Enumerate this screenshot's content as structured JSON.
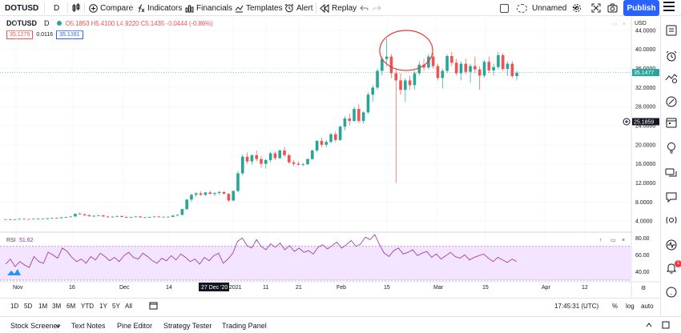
{
  "toolbar": {
    "symbol": "DOTUSD",
    "interval": "D",
    "compare": "Compare",
    "indicators": "Indicators",
    "financials": "Financials",
    "templates": "Templates",
    "alert": "Alert",
    "replay": "Replay",
    "layout_name": "Unnamed",
    "publish": "Publish"
  },
  "legend": {
    "symbol": "DOTUSD",
    "interval": "D",
    "ohlc": "O5.1853 H5.4100 L4.9220 C5.1435 -0.0444 (-0.86%)",
    "sell_price": "35.1275",
    "spread": "0.0116",
    "buy_price": "35.1391"
  },
  "price_axis": {
    "currency": "USD",
    "ticks": [
      "44.0000",
      "40.0000",
      "36.0000",
      "32.0000",
      "28.0000",
      "24.0000",
      "20.0000",
      "16.0000",
      "12.0000",
      "8.0000",
      "4.0000"
    ],
    "last_price": "35.1477",
    "crosshair_price": "25.1859"
  },
  "rsi": {
    "label": "RSI",
    "value": "51.62",
    "ticks": [
      "80.00",
      "60.00",
      "40.00"
    ]
  },
  "time_axis": {
    "labels": [
      "Nov",
      "16",
      "Dec",
      "14",
      "2021",
      "11",
      "21",
      "Feb",
      "15",
      "Mar",
      "15",
      "Apr",
      "12"
    ],
    "crosshair_date": "27 Dec '20"
  },
  "range_bar": {
    "ranges": [
      "1D",
      "5D",
      "1M",
      "3M",
      "6M",
      "YTD",
      "1Y",
      "5Y",
      "All"
    ],
    "clock": "17:45:31 (UTC)",
    "percent": "%",
    "log": "log",
    "auto": "auto"
  },
  "bottom_panel": {
    "tabs": [
      "Stock Screener",
      "Text Notes",
      "Pine Editor",
      "Strategy Tester",
      "Trading Panel"
    ]
  },
  "notifications": {
    "badge": "1"
  },
  "chart_data": {
    "type": "candlestick",
    "symbol": "DOTUSD",
    "interval": "D",
    "ylim": [
      2,
      46
    ],
    "grid": true,
    "colors": {
      "up": "#26a69a",
      "down": "#ef5350",
      "rsi": "#9c27b0",
      "rsi_band": "#f3e5ff",
      "annotation": "#e53935"
    },
    "candles": [
      [
        4.35,
        4.4,
        4.3,
        4.37
      ],
      [
        4.37,
        4.45,
        4.3,
        4.33
      ],
      [
        4.33,
        4.4,
        4.25,
        4.36
      ],
      [
        4.36,
        4.5,
        4.3,
        4.45
      ],
      [
        4.45,
        4.5,
        4.35,
        4.4
      ],
      [
        4.4,
        4.45,
        4.3,
        4.38
      ],
      [
        4.38,
        4.5,
        4.32,
        4.46
      ],
      [
        4.46,
        4.55,
        4.4,
        4.5
      ],
      [
        4.5,
        4.55,
        4.4,
        4.42
      ],
      [
        4.42,
        4.6,
        4.35,
        4.58
      ],
      [
        4.58,
        4.7,
        4.5,
        4.65
      ],
      [
        4.65,
        4.75,
        4.55,
        4.6
      ],
      [
        4.6,
        4.8,
        4.55,
        4.78
      ],
      [
        4.78,
        4.9,
        4.7,
        4.85
      ],
      [
        4.85,
        5.0,
        4.75,
        4.95
      ],
      [
        4.95,
        5.6,
        4.9,
        5.5
      ],
      [
        5.5,
        5.8,
        5.3,
        5.4
      ],
      [
        5.4,
        5.6,
        5.1,
        5.2
      ],
      [
        5.2,
        5.4,
        4.9,
        5.0
      ],
      [
        5.0,
        5.2,
        4.8,
        5.1
      ],
      [
        5.1,
        5.3,
        4.95,
        5.2
      ],
      [
        5.2,
        5.25,
        4.9,
        4.95
      ],
      [
        4.95,
        5.05,
        4.7,
        4.8
      ],
      [
        4.8,
        5.0,
        4.7,
        4.9
      ],
      [
        4.9,
        5.1,
        4.85,
        5.05
      ],
      [
        5.05,
        5.1,
        4.8,
        4.85
      ],
      [
        4.85,
        4.95,
        4.6,
        4.7
      ],
      [
        4.7,
        4.9,
        4.6,
        4.82
      ],
      [
        4.82,
        5.0,
        4.75,
        4.95
      ],
      [
        4.95,
        5.0,
        4.7,
        4.75
      ],
      [
        4.75,
        4.85,
        4.6,
        4.78
      ],
      [
        4.78,
        4.9,
        4.7,
        4.85
      ],
      [
        4.85,
        5.0,
        4.8,
        4.95
      ],
      [
        4.95,
        5.0,
        4.75,
        4.8
      ],
      [
        4.8,
        4.95,
        4.7,
        4.9
      ],
      [
        4.9,
        5.0,
        4.8,
        4.85
      ],
      [
        4.85,
        5.2,
        4.8,
        5.15
      ],
      [
        5.15,
        5.4,
        5.0,
        5.3
      ],
      [
        5.3,
        6.6,
        5.2,
        6.5
      ],
      [
        6.5,
        8.6,
        6.3,
        8.5
      ],
      [
        8.5,
        9.8,
        8.0,
        9.5
      ],
      [
        9.5,
        10.1,
        9.0,
        9.8
      ],
      [
        9.8,
        10.2,
        9.3,
        9.5
      ],
      [
        9.5,
        10.1,
        9.2,
        10.0
      ],
      [
        10.0,
        10.4,
        9.6,
        9.7
      ],
      [
        9.7,
        10.0,
        9.2,
        9.9
      ],
      [
        9.9,
        10.3,
        9.5,
        10.1
      ],
      [
        10.1,
        10.2,
        9.6,
        9.7
      ],
      [
        9.7,
        9.8,
        8.0,
        8.3
      ],
      [
        8.3,
        10.5,
        8.1,
        10.3
      ],
      [
        10.3,
        14.5,
        10.0,
        14.0
      ],
      [
        14.0,
        18.0,
        13.5,
        17.5
      ],
      [
        17.5,
        18.4,
        16.0,
        16.5
      ],
      [
        16.5,
        18.0,
        15.8,
        17.8
      ],
      [
        17.8,
        18.8,
        16.5,
        17.0
      ],
      [
        17.0,
        17.6,
        15.2,
        16.0
      ],
      [
        16.0,
        17.0,
        15.0,
        16.8
      ],
      [
        16.8,
        18.5,
        16.3,
        18.2
      ],
      [
        18.2,
        18.6,
        16.8,
        17.2
      ],
      [
        17.2,
        19.0,
        17.0,
        18.8
      ],
      [
        18.8,
        19.5,
        17.5,
        17.8
      ],
      [
        17.8,
        18.2,
        16.0,
        16.3
      ],
      [
        16.3,
        16.8,
        15.5,
        16.0
      ],
      [
        16.0,
        16.5,
        15.6,
        15.8
      ],
      [
        15.8,
        16.2,
        15.5,
        15.9
      ],
      [
        15.9,
        17.2,
        15.7,
        17.0
      ],
      [
        17.0,
        19.0,
        16.8,
        18.8
      ],
      [
        18.8,
        21.0,
        18.5,
        20.8
      ],
      [
        20.8,
        21.5,
        19.5,
        20.0
      ],
      [
        20.0,
        21.0,
        19.5,
        20.6
      ],
      [
        20.6,
        22.5,
        20.3,
        22.2
      ],
      [
        22.2,
        22.8,
        20.5,
        21.0
      ],
      [
        21.0,
        24.0,
        20.8,
        23.8
      ],
      [
        23.8,
        26.0,
        23.0,
        25.5
      ],
      [
        25.5,
        26.5,
        24.0,
        25.0
      ],
      [
        25.0,
        28.0,
        24.8,
        27.5
      ],
      [
        27.5,
        28.5,
        24.5,
        25.0
      ],
      [
        25.0,
        27.0,
        24.5,
        26.8
      ],
      [
        26.8,
        31.0,
        26.5,
        30.5
      ],
      [
        30.5,
        32.5,
        29.0,
        32.0
      ],
      [
        32.0,
        36.0,
        31.5,
        35.5
      ],
      [
        35.5,
        38.5,
        34.5,
        38.0
      ],
      [
        38.0,
        42.3,
        36.5,
        38.5
      ],
      [
        38.5,
        39.0,
        34.0,
        35.0
      ],
      [
        35.0,
        36.0,
        12.0,
        33.5
      ],
      [
        33.5,
        35.0,
        30.5,
        31.5
      ],
      [
        31.5,
        34.0,
        29.0,
        33.5
      ],
      [
        33.5,
        34.5,
        31.5,
        32.5
      ],
      [
        32.5,
        35.5,
        31.5,
        35.0
      ],
      [
        35.0,
        37.5,
        34.5,
        36.8
      ],
      [
        36.8,
        38.0,
        35.5,
        36.2
      ],
      [
        36.2,
        39.0,
        35.8,
        38.5
      ],
      [
        38.5,
        39.2,
        36.0,
        36.5
      ],
      [
        36.5,
        37.0,
        33.5,
        34.0
      ],
      [
        34.0,
        36.0,
        31.8,
        35.5
      ],
      [
        35.5,
        39.0,
        35.0,
        38.6
      ],
      [
        38.6,
        39.5,
        36.5,
        37.2
      ],
      [
        37.2,
        38.0,
        34.5,
        35.0
      ],
      [
        35.0,
        37.5,
        33.5,
        37.0
      ],
      [
        37.0,
        38.0,
        34.8,
        35.3
      ],
      [
        35.3,
        37.0,
        33.0,
        36.5
      ],
      [
        36.5,
        38.5,
        35.0,
        35.8
      ],
      [
        35.8,
        36.5,
        31.5,
        34.5
      ],
      [
        34.5,
        37.8,
        34.0,
        37.4
      ],
      [
        37.4,
        38.5,
        35.0,
        35.6
      ],
      [
        35.6,
        37.0,
        34.5,
        36.3
      ],
      [
        36.3,
        39.5,
        35.8,
        38.8
      ],
      [
        38.8,
        39.2,
        35.5,
        35.9
      ],
      [
        35.9,
        37.5,
        34.5,
        37.0
      ],
      [
        37.0,
        37.5,
        34.0,
        34.4
      ],
      [
        34.4,
        35.5,
        33.5,
        35.1
      ]
    ],
    "rsi_values": [
      49,
      55,
      46,
      52,
      48,
      45,
      58,
      52,
      50,
      63,
      60,
      56,
      68,
      64,
      57,
      52,
      55,
      50,
      58,
      54,
      62,
      58,
      53,
      57,
      52,
      59,
      63,
      57,
      55,
      62,
      58,
      53,
      50,
      56,
      53,
      59,
      54,
      61,
      57,
      52,
      55,
      49,
      57,
      53,
      59,
      62,
      50,
      55,
      62,
      76,
      80,
      71,
      68,
      78,
      70,
      66,
      73,
      69,
      74,
      66,
      71,
      64,
      68,
      63,
      65,
      61,
      69,
      72,
      67,
      71,
      75,
      68,
      72,
      77,
      70,
      73,
      81,
      78,
      84,
      72,
      62,
      58,
      65,
      68,
      61,
      63,
      66,
      59,
      62,
      64,
      57,
      61,
      55,
      59,
      63,
      58,
      56,
      60,
      54,
      57,
      59,
      61,
      56,
      52,
      57,
      54,
      51,
      55,
      52
    ],
    "price_ticks": [
      44,
      40,
      36,
      32,
      28,
      24,
      20,
      16,
      12,
      8,
      4
    ],
    "last_close": 35.1477,
    "annotation": "circle-around-peak"
  }
}
